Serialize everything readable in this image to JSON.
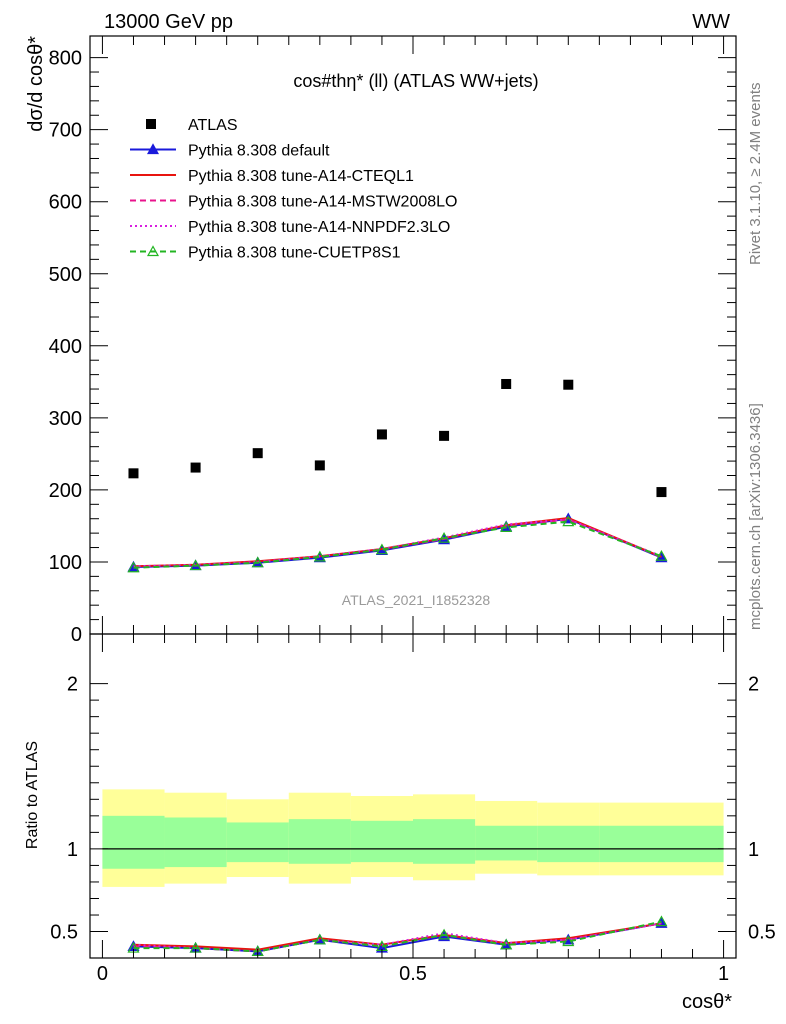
{
  "header": {
    "left": "13000 GeV pp",
    "right": "WW"
  },
  "side_labels": {
    "rivet": "Rivet 3.1.10, ≥ 2.4M events",
    "mcplots": "mcplots.cern.ch [arXiv:1306.3436]"
  },
  "chart_data": [
    {
      "type": "scatter",
      "title": "cos#thη* (ll) (ATLAS WW+jets)",
      "ylabel": "dσ/d cosθ*",
      "watermark": "ATLAS_2021_I1852328",
      "xlim": [
        -0.02,
        1.02
      ],
      "ylim": [
        0,
        830
      ],
      "yticks": [
        0,
        100,
        200,
        300,
        400,
        500,
        600,
        700,
        800
      ],
      "x": [
        0.05,
        0.15,
        0.25,
        0.35,
        0.45,
        0.55,
        0.65,
        0.75,
        0.9
      ],
      "series": [
        {
          "name": "ATLAS",
          "color": "#000000",
          "marker": "square",
          "values": [
            223,
            231,
            251,
            234,
            277,
            275,
            347,
            346,
            197
          ]
        },
        {
          "name": "Pythia 8.308 default",
          "color": "#1a1adb",
          "style": "solid",
          "marker": "triangle",
          "values": [
            93,
            95,
            99,
            106,
            116,
            131,
            149,
            160,
            106
          ]
        },
        {
          "name": "Pythia 8.308 tune-A14-CTEQL1",
          "color": "#e8140f",
          "style": "solid",
          "marker": "none",
          "values": [
            94,
            96,
            101,
            108,
            118,
            133,
            151,
            161,
            107
          ]
        },
        {
          "name": "Pythia 8.308 tune-A14-MSTW2008LO",
          "color": "#e8148c",
          "style": "dashed",
          "marker": "none",
          "values": [
            93,
            95,
            100,
            107,
            117,
            132,
            149,
            159,
            107
          ]
        },
        {
          "name": "Pythia 8.308 tune-A14-NNPDF2.3LO",
          "color": "#d81ee0",
          "style": "dotted",
          "marker": "none",
          "values": [
            94,
            96,
            100,
            108,
            118,
            134,
            152,
            159,
            108
          ]
        },
        {
          "name": "Pythia 8.308 tune-CUETP8S1",
          "color": "#23b523",
          "style": "dashed",
          "marker": "open-triangle",
          "values": [
            92,
            95,
            99,
            107,
            117,
            133,
            148,
            156,
            108
          ]
        }
      ]
    },
    {
      "type": "line",
      "title": "",
      "xlabel": "cosθ*",
      "ylabel": "Ratio to ATLAS",
      "xlim": [
        -0.02,
        1.02
      ],
      "ylim": [
        0.34,
        2.3
      ],
      "xticks": [
        0,
        0.5,
        1
      ],
      "xticklabels": [
        "0",
        "0.5",
        "1"
      ],
      "yticks": [
        0.5,
        1,
        2
      ],
      "yticklabels": [
        "0.5",
        "1",
        "2"
      ],
      "bands": {
        "bin_edges": [
          0.0,
          0.1,
          0.2,
          0.3,
          0.4,
          0.5,
          0.6,
          0.7,
          0.8,
          1.0
        ],
        "yellow": [
          [
            0.77,
            1.36
          ],
          [
            0.79,
            1.34
          ],
          [
            0.83,
            1.3
          ],
          [
            0.79,
            1.34
          ],
          [
            0.83,
            1.32
          ],
          [
            0.81,
            1.33
          ],
          [
            0.85,
            1.29
          ],
          [
            0.84,
            1.28
          ],
          [
            0.84,
            1.28
          ]
        ],
        "green": [
          [
            0.88,
            1.2
          ],
          [
            0.89,
            1.19
          ],
          [
            0.92,
            1.16
          ],
          [
            0.91,
            1.18
          ],
          [
            0.92,
            1.17
          ],
          [
            0.91,
            1.18
          ],
          [
            0.93,
            1.14
          ],
          [
            0.92,
            1.14
          ],
          [
            0.92,
            1.14
          ]
        ],
        "yellow_color": "#ffff99",
        "green_color": "#99ff99"
      },
      "x": [
        0.05,
        0.15,
        0.25,
        0.35,
        0.45,
        0.55,
        0.65,
        0.75,
        0.9
      ],
      "series": [
        {
          "name": "Pythia 8.308 default",
          "color": "#1a1adb",
          "values": [
            0.41,
            0.4,
            0.38,
            0.45,
            0.4,
            0.47,
            0.42,
            0.45,
            0.55
          ]
        },
        {
          "name": "Pythia 8.308 tune-A14-CTEQL1",
          "color": "#e8140f",
          "values": [
            0.42,
            0.41,
            0.39,
            0.46,
            0.42,
            0.48,
            0.43,
            0.46,
            0.55
          ]
        },
        {
          "name": "Pythia 8.308 tune-A14-MSTW2008LO",
          "color": "#e8148c",
          "values": [
            0.41,
            0.4,
            0.38,
            0.45,
            0.41,
            0.48,
            0.42,
            0.45,
            0.55
          ]
        },
        {
          "name": "Pythia 8.308 tune-A14-NNPDF2.3LO",
          "color": "#d81ee0",
          "values": [
            0.42,
            0.4,
            0.38,
            0.45,
            0.42,
            0.49,
            0.43,
            0.45,
            0.55
          ]
        },
        {
          "name": "Pythia 8.308 tune-CUETP8S1",
          "color": "#23b523",
          "values": [
            0.4,
            0.4,
            0.38,
            0.45,
            0.41,
            0.48,
            0.42,
            0.44,
            0.56
          ]
        }
      ]
    }
  ]
}
